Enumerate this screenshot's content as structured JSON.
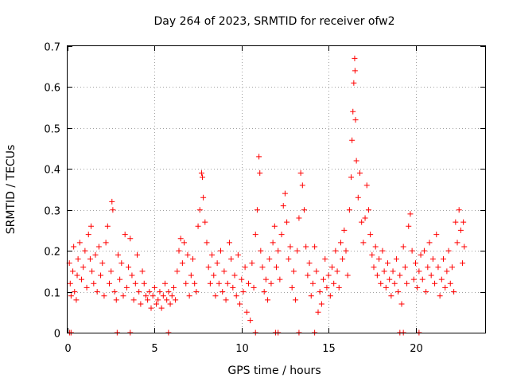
{
  "chart_data": {
    "type": "scatter",
    "title": "Day 264 of 2023, SRMTID for receiver ofw2",
    "xlabel": "GPS time / hours",
    "ylabel": "SRMTID / TECUs",
    "xlim": [
      0,
      24
    ],
    "ylim": [
      0,
      0.7
    ],
    "xticks": [
      "0",
      "5",
      "10",
      "15",
      "20"
    ],
    "xtick_values": [
      0,
      5,
      10,
      15,
      20
    ],
    "yticks": [
      "0",
      "0.1",
      "0.2",
      "0.3",
      "0.4",
      "0.5",
      "0.6",
      "0.7"
    ],
    "ytick_values": [
      0,
      0.1,
      0.2,
      0.3,
      0.4,
      0.5,
      0.6,
      0.7
    ],
    "grid": true,
    "marker": "+",
    "marker_color": "#ff0000",
    "series": [
      {
        "name": "ofw2",
        "points": [
          [
            0.1,
            0.17
          ],
          [
            0.15,
            0.12
          ],
          [
            0.2,
            0.09
          ],
          [
            0.3,
            0.15
          ],
          [
            0.35,
            0.21
          ],
          [
            0.4,
            0.1
          ],
          [
            0.5,
            0.08
          ],
          [
            0.55,
            0.14
          ],
          [
            0.6,
            0.18
          ],
          [
            0.7,
            0.22
          ],
          [
            0.8,
            0.13
          ],
          [
            0.9,
            0.16
          ],
          [
            1.0,
            0.2
          ],
          [
            1.1,
            0.11
          ],
          [
            1.2,
            0.24
          ],
          [
            1.3,
            0.18
          ],
          [
            1.35,
            0.26
          ],
          [
            1.4,
            0.15
          ],
          [
            1.5,
            0.12
          ],
          [
            1.6,
            0.19
          ],
          [
            1.7,
            0.1
          ],
          [
            1.8,
            0.21
          ],
          [
            1.9,
            0.14
          ],
          [
            2.0,
            0.17
          ],
          [
            2.1,
            0.09
          ],
          [
            2.2,
            0.22
          ],
          [
            2.3,
            0.26
          ],
          [
            2.4,
            0.12
          ],
          [
            2.5,
            0.15
          ],
          [
            2.55,
            0.32
          ],
          [
            2.6,
            0.3
          ],
          [
            2.7,
            0.1
          ],
          [
            2.8,
            0.08
          ],
          [
            2.9,
            0.19
          ],
          [
            3.0,
            0.13
          ],
          [
            3.1,
            0.17
          ],
          [
            3.2,
            0.09
          ],
          [
            3.3,
            0.24
          ],
          [
            3.4,
            0.11
          ],
          [
            3.5,
            0.16
          ],
          [
            3.6,
            0.23
          ],
          [
            3.7,
            0.14
          ],
          [
            3.8,
            0.08
          ],
          [
            3.9,
            0.12
          ],
          [
            4.0,
            0.19
          ],
          [
            4.1,
            0.1
          ],
          [
            4.2,
            0.07
          ],
          [
            4.3,
            0.15
          ],
          [
            4.4,
            0.12
          ],
          [
            4.5,
            0.09
          ],
          [
            4.6,
            0.08
          ],
          [
            4.7,
            0.1
          ],
          [
            4.8,
            0.06
          ],
          [
            4.9,
            0.09
          ],
          [
            5.0,
            0.11
          ],
          [
            5.1,
            0.07
          ],
          [
            5.2,
            0.08
          ],
          [
            5.3,
            0.1
          ],
          [
            5.4,
            0.06
          ],
          [
            5.5,
            0.09
          ],
          [
            5.6,
            0.12
          ],
          [
            5.7,
            0.08
          ],
          [
            5.8,
            0.1
          ],
          [
            5.9,
            0.07
          ],
          [
            6.0,
            0.09
          ],
          [
            6.1,
            0.11
          ],
          [
            6.2,
            0.08
          ],
          [
            6.3,
            0.15
          ],
          [
            6.4,
            0.2
          ],
          [
            6.5,
            0.23
          ],
          [
            6.6,
            0.17
          ],
          [
            6.7,
            0.22
          ],
          [
            6.8,
            0.12
          ],
          [
            6.9,
            0.19
          ],
          [
            7.0,
            0.09
          ],
          [
            7.1,
            0.14
          ],
          [
            7.2,
            0.18
          ],
          [
            7.3,
            0.12
          ],
          [
            7.4,
            0.1
          ],
          [
            7.5,
            0.26
          ],
          [
            7.6,
            0.3
          ],
          [
            7.7,
            0.39
          ],
          [
            7.75,
            0.38
          ],
          [
            7.8,
            0.33
          ],
          [
            7.9,
            0.27
          ],
          [
            8.0,
            0.22
          ],
          [
            8.1,
            0.16
          ],
          [
            8.2,
            0.12
          ],
          [
            8.3,
            0.19
          ],
          [
            8.4,
            0.14
          ],
          [
            8.5,
            0.09
          ],
          [
            8.6,
            0.17
          ],
          [
            8.7,
            0.12
          ],
          [
            8.8,
            0.2
          ],
          [
            8.9,
            0.1
          ],
          [
            9.0,
            0.15
          ],
          [
            9.1,
            0.08
          ],
          [
            9.2,
            0.12
          ],
          [
            9.3,
            0.22
          ],
          [
            9.4,
            0.18
          ],
          [
            9.5,
            0.11
          ],
          [
            9.6,
            0.14
          ],
          [
            9.7,
            0.09
          ],
          [
            9.8,
            0.19
          ],
          [
            9.9,
            0.07
          ],
          [
            10.0,
            0.13
          ],
          [
            10.1,
            0.1
          ],
          [
            10.2,
            0.16
          ],
          [
            10.3,
            0.05
          ],
          [
            10.4,
            0.12
          ],
          [
            10.5,
            0.03
          ],
          [
            10.6,
            0.17
          ],
          [
            10.7,
            0.11
          ],
          [
            10.8,
            0.24
          ],
          [
            10.9,
            0.3
          ],
          [
            11.0,
            0.43
          ],
          [
            11.05,
            0.39
          ],
          [
            11.1,
            0.2
          ],
          [
            11.2,
            0.16
          ],
          [
            11.3,
            0.1
          ],
          [
            11.4,
            0.13
          ],
          [
            11.5,
            0.08
          ],
          [
            11.6,
            0.18
          ],
          [
            11.7,
            0.12
          ],
          [
            11.8,
            0.22
          ],
          [
            11.9,
            0.26
          ],
          [
            12.0,
            0.16
          ],
          [
            12.1,
            0.2
          ],
          [
            12.2,
            0.13
          ],
          [
            12.3,
            0.24
          ],
          [
            12.4,
            0.31
          ],
          [
            12.5,
            0.34
          ],
          [
            12.6,
            0.27
          ],
          [
            12.7,
            0.18
          ],
          [
            12.8,
            0.21
          ],
          [
            12.9,
            0.11
          ],
          [
            13.0,
            0.15
          ],
          [
            13.1,
            0.08
          ],
          [
            13.2,
            0.2
          ],
          [
            13.3,
            0.28
          ],
          [
            13.4,
            0.39
          ],
          [
            13.5,
            0.36
          ],
          [
            13.6,
            0.3
          ],
          [
            13.7,
            0.21
          ],
          [
            13.8,
            0.14
          ],
          [
            13.9,
            0.17
          ],
          [
            14.0,
            0.09
          ],
          [
            14.1,
            0.12
          ],
          [
            14.2,
            0.21
          ],
          [
            14.3,
            0.15
          ],
          [
            14.4,
            0.05
          ],
          [
            14.5,
            0.1
          ],
          [
            14.6,
            0.07
          ],
          [
            14.7,
            0.13
          ],
          [
            14.8,
            0.18
          ],
          [
            14.9,
            0.11
          ],
          [
            15.0,
            0.14
          ],
          [
            15.1,
            0.09
          ],
          [
            15.2,
            0.16
          ],
          [
            15.3,
            0.12
          ],
          [
            15.4,
            0.2
          ],
          [
            15.5,
            0.15
          ],
          [
            15.6,
            0.11
          ],
          [
            15.7,
            0.22
          ],
          [
            15.8,
            0.18
          ],
          [
            15.9,
            0.25
          ],
          [
            16.0,
            0.2
          ],
          [
            16.1,
            0.14
          ],
          [
            16.2,
            0.3
          ],
          [
            16.3,
            0.38
          ],
          [
            16.35,
            0.47
          ],
          [
            16.4,
            0.54
          ],
          [
            16.45,
            0.61
          ],
          [
            16.5,
            0.67
          ],
          [
            16.52,
            0.64
          ],
          [
            16.55,
            0.52
          ],
          [
            16.6,
            0.42
          ],
          [
            16.7,
            0.33
          ],
          [
            16.8,
            0.39
          ],
          [
            16.9,
            0.27
          ],
          [
            17.0,
            0.22
          ],
          [
            17.1,
            0.28
          ],
          [
            17.2,
            0.36
          ],
          [
            17.3,
            0.3
          ],
          [
            17.4,
            0.24
          ],
          [
            17.5,
            0.19
          ],
          [
            17.6,
            0.16
          ],
          [
            17.7,
            0.21
          ],
          [
            17.8,
            0.14
          ],
          [
            17.9,
            0.18
          ],
          [
            18.0,
            0.12
          ],
          [
            18.1,
            0.2
          ],
          [
            18.2,
            0.15
          ],
          [
            18.3,
            0.11
          ],
          [
            18.4,
            0.17
          ],
          [
            18.5,
            0.13
          ],
          [
            18.6,
            0.09
          ],
          [
            18.7,
            0.15
          ],
          [
            18.8,
            0.12
          ],
          [
            18.9,
            0.18
          ],
          [
            19.0,
            0.1
          ],
          [
            19.1,
            0.14
          ],
          [
            19.2,
            0.07
          ],
          [
            19.3,
            0.21
          ],
          [
            19.4,
            0.16
          ],
          [
            19.5,
            0.12
          ],
          [
            19.6,
            0.26
          ],
          [
            19.7,
            0.29
          ],
          [
            19.8,
            0.2
          ],
          [
            19.9,
            0.13
          ],
          [
            20.0,
            0.17
          ],
          [
            20.1,
            0.11
          ],
          [
            20.2,
            0.15
          ],
          [
            20.3,
            0.19
          ],
          [
            20.4,
            0.13
          ],
          [
            20.5,
            0.2
          ],
          [
            20.6,
            0.1
          ],
          [
            20.7,
            0.16
          ],
          [
            20.8,
            0.22
          ],
          [
            20.9,
            0.14
          ],
          [
            21.0,
            0.18
          ],
          [
            21.1,
            0.12
          ],
          [
            21.2,
            0.24
          ],
          [
            21.3,
            0.16
          ],
          [
            21.4,
            0.09
          ],
          [
            21.5,
            0.13
          ],
          [
            21.6,
            0.18
          ],
          [
            21.7,
            0.11
          ],
          [
            21.8,
            0.15
          ],
          [
            21.9,
            0.2
          ],
          [
            22.0,
            0.12
          ],
          [
            22.1,
            0.16
          ],
          [
            22.2,
            0.1
          ],
          [
            22.3,
            0.27
          ],
          [
            22.4,
            0.22
          ],
          [
            22.5,
            0.3
          ],
          [
            22.6,
            0.25
          ],
          [
            22.7,
            0.17
          ],
          [
            22.75,
            0.27
          ],
          [
            22.8,
            0.21
          ],
          [
            0.12,
            0
          ],
          [
            0.2,
            0
          ],
          [
            2.85,
            0
          ],
          [
            3.6,
            0
          ],
          [
            5.8,
            0
          ],
          [
            10.8,
            0
          ],
          [
            11.95,
            0
          ],
          [
            12.1,
            0
          ],
          [
            13.3,
            0
          ],
          [
            14.2,
            0
          ],
          [
            19.1,
            0
          ],
          [
            19.3,
            0
          ],
          [
            20.2,
            0
          ]
        ]
      }
    ]
  }
}
